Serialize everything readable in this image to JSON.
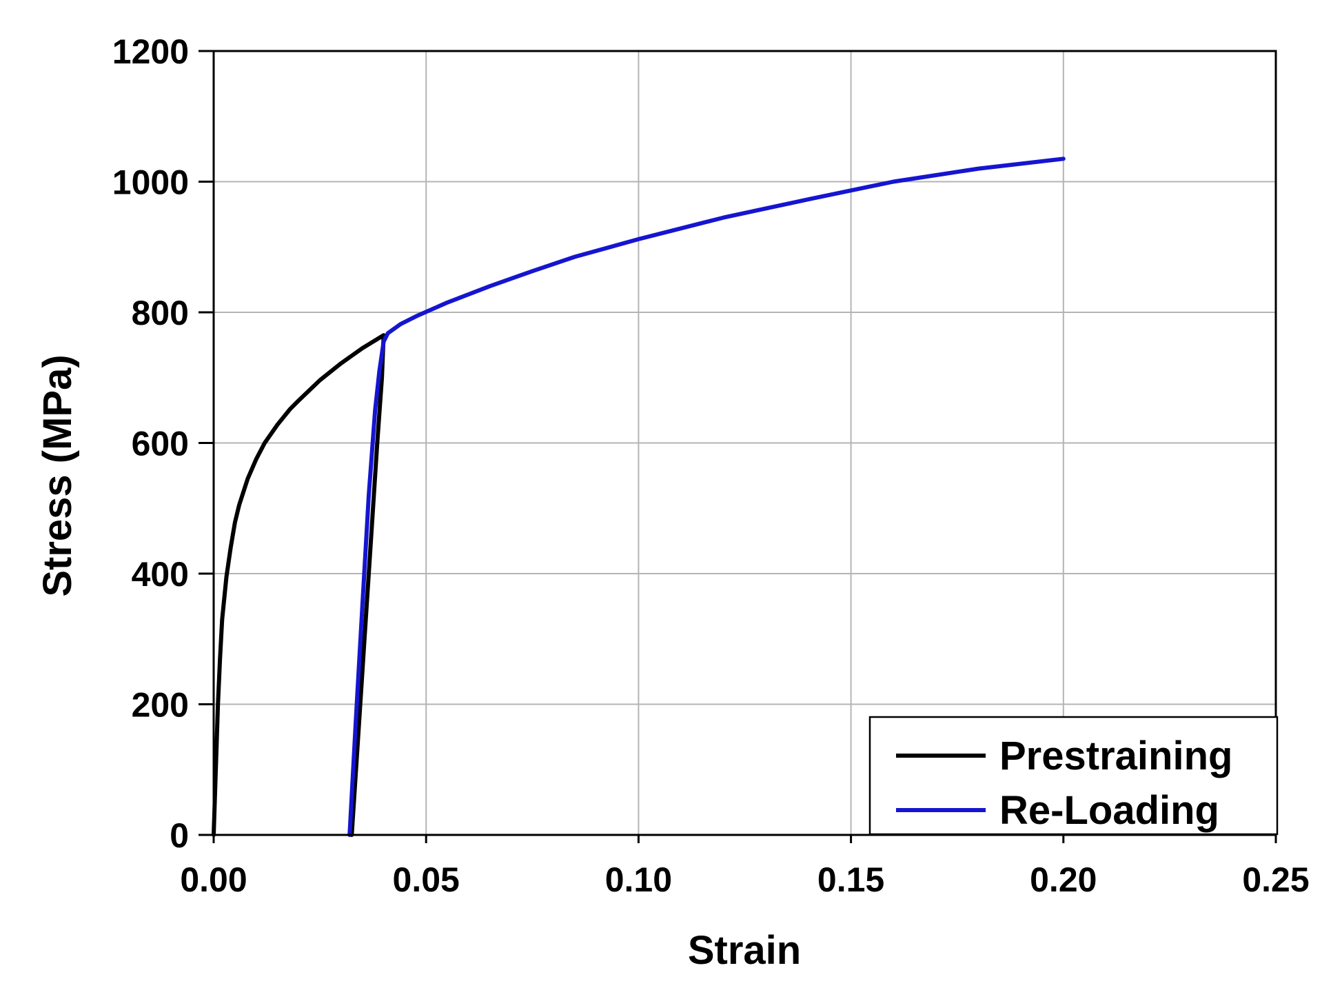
{
  "chart_data": {
    "type": "line",
    "xlabel": "Strain",
    "ylabel": "Stress (MPa)",
    "xlim": [
      0,
      0.25
    ],
    "ylim": [
      0,
      1200
    ],
    "xticks": [
      "0.00",
      "0.05",
      "0.10",
      "0.15",
      "0.20",
      "0.25"
    ],
    "yticks": [
      "0",
      "200",
      "400",
      "600",
      "800",
      "1000",
      "1200"
    ],
    "xtick_values": [
      0,
      0.05,
      0.1,
      0.15,
      0.2,
      0.25
    ],
    "ytick_values": [
      0,
      200,
      400,
      600,
      800,
      1000,
      1200
    ],
    "grid": true,
    "legend_position": "bottom-right",
    "series": [
      {
        "name": "Prestraining",
        "color": "#000000",
        "x": [
          0.0,
          0.0005,
          0.001,
          0.0015,
          0.002,
          0.003,
          0.004,
          0.005,
          0.006,
          0.008,
          0.01,
          0.012,
          0.015,
          0.018,
          0.02,
          0.025,
          0.03,
          0.035,
          0.04,
          0.0396,
          0.0385,
          0.037,
          0.0355,
          0.034,
          0.033,
          0.0325
        ],
        "y": [
          0,
          100,
          200,
          270,
          330,
          395,
          440,
          478,
          505,
          545,
          575,
          600,
          628,
          652,
          665,
          696,
          722,
          745,
          765,
          700,
          600,
          450,
          300,
          150,
          50,
          0
        ]
      },
      {
        "name": "Re-Loading",
        "color": "#1515d0",
        "x": [
          0.032,
          0.0335,
          0.035,
          0.0365,
          0.038,
          0.039,
          0.04,
          0.041,
          0.044,
          0.048,
          0.055,
          0.065,
          0.075,
          0.085,
          0.1,
          0.12,
          0.14,
          0.16,
          0.18,
          0.2
        ],
        "y": [
          0,
          180,
          350,
          520,
          650,
          710,
          755,
          768,
          782,
          795,
          815,
          840,
          863,
          885,
          912,
          945,
          973,
          1000,
          1020,
          1035
        ]
      }
    ]
  }
}
